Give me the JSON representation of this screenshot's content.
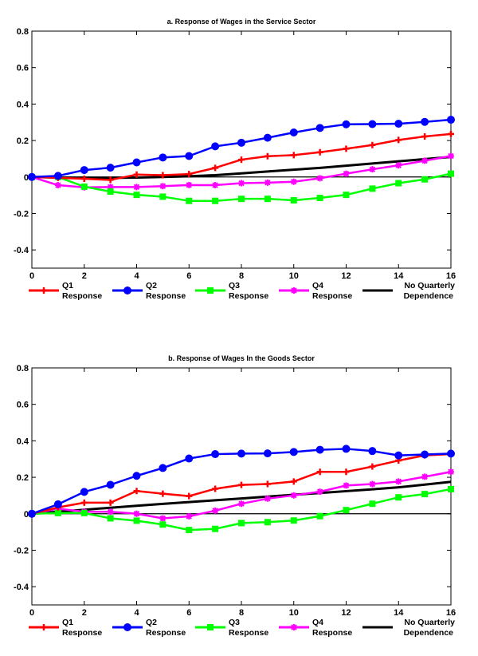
{
  "chart_data": [
    {
      "type": "line",
      "title": "a. Response of Wages in the Service Sector",
      "xlabel": "",
      "ylabel": "",
      "xlim": [
        0,
        16
      ],
      "ylim": [
        -0.5,
        0.8
      ],
      "xticks": [
        0,
        2,
        4,
        6,
        8,
        10,
        12,
        14,
        16
      ],
      "yticks": [
        -0.4,
        -0.2,
        0,
        0.2,
        0.4,
        0.6,
        0.8
      ],
      "ytick_labels": [
        "-0.4",
        "-0.2",
        "0",
        "0.2",
        "0.4",
        "0.6",
        "0.8"
      ],
      "grid": false,
      "legend_position": "bottom",
      "x": [
        0,
        1,
        2,
        3,
        4,
        5,
        6,
        7,
        8,
        9,
        10,
        11,
        12,
        13,
        14,
        15,
        16
      ],
      "series": [
        {
          "name": "Q1 Response",
          "label1": "Q1",
          "label2": "Response",
          "color": "#ff0000",
          "marker": "plus",
          "values": [
            0,
            -0.005,
            -0.01,
            -0.016,
            0.013,
            0.01,
            0.016,
            0.05,
            0.095,
            0.114,
            0.12,
            0.136,
            0.155,
            0.175,
            0.203,
            0.222,
            0.236
          ]
        },
        {
          "name": "Q2 Response",
          "label1": "Q2",
          "label2": "Response",
          "color": "#0000ff",
          "marker": "circle",
          "values": [
            0,
            0.006,
            0.038,
            0.051,
            0.08,
            0.107,
            0.115,
            0.168,
            0.188,
            0.215,
            0.244,
            0.269,
            0.289,
            0.29,
            0.292,
            0.302,
            0.314
          ]
        },
        {
          "name": "Q3 Response",
          "label1": "Q3",
          "label2": "Response",
          "color": "#00ff00",
          "marker": "square",
          "values": [
            0,
            0,
            -0.053,
            -0.08,
            -0.098,
            -0.108,
            -0.131,
            -0.131,
            -0.12,
            -0.12,
            -0.128,
            -0.115,
            -0.098,
            -0.064,
            -0.034,
            -0.013,
            0.018
          ]
        },
        {
          "name": "Q4 Response",
          "label1": "Q4",
          "label2": "Response",
          "color": "#ff00ff",
          "marker": "star",
          "values": [
            0,
            -0.045,
            -0.057,
            -0.055,
            -0.055,
            -0.05,
            -0.044,
            -0.045,
            -0.034,
            -0.031,
            -0.026,
            -0.007,
            0.018,
            0.042,
            0.064,
            0.089,
            0.115
          ]
        },
        {
          "name": "No Quarterly Dependence",
          "label1": "No Quarterly",
          "label2": "Dependence",
          "color": "#000000",
          "marker": "none",
          "values": [
            0,
            -0.003,
            -0.005,
            -0.005,
            -0.003,
            0,
            0.004,
            0.01,
            0.02,
            0.03,
            0.04,
            0.05,
            0.062,
            0.074,
            0.086,
            0.098,
            0.11
          ]
        }
      ]
    },
    {
      "type": "line",
      "title": "b. Response of Wages In the Goods Sector",
      "xlabel": "",
      "ylabel": "",
      "xlim": [
        0,
        16
      ],
      "ylim": [
        -0.5,
        0.8
      ],
      "xticks": [
        0,
        2,
        4,
        6,
        8,
        10,
        12,
        14,
        16
      ],
      "yticks": [
        -0.4,
        -0.2,
        0,
        0.2,
        0.4,
        0.6,
        0.8
      ],
      "ytick_labels": [
        "-0.4",
        "-0.2",
        "0",
        "0.2",
        "0.4",
        "0.6",
        "0.8"
      ],
      "grid": false,
      "legend_position": "bottom",
      "x": [
        0,
        1,
        2,
        3,
        4,
        5,
        6,
        7,
        8,
        9,
        10,
        11,
        12,
        13,
        14,
        15,
        16
      ],
      "series": [
        {
          "name": "Q1 Response",
          "label1": "Q1",
          "label2": "Response",
          "color": "#ff0000",
          "marker": "plus",
          "values": [
            0,
            0.035,
            0.061,
            0.061,
            0.125,
            0.11,
            0.097,
            0.137,
            0.158,
            0.163,
            0.177,
            0.23,
            0.23,
            0.259,
            0.292,
            0.32,
            0.327
          ]
        },
        {
          "name": "Q2 Response",
          "label1": "Q2",
          "label2": "Response",
          "color": "#0000ff",
          "marker": "circle",
          "values": [
            0,
            0.052,
            0.12,
            0.159,
            0.208,
            0.251,
            0.303,
            0.327,
            0.33,
            0.331,
            0.339,
            0.351,
            0.356,
            0.344,
            0.32,
            0.325,
            0.33
          ]
        },
        {
          "name": "Q3 Response",
          "label1": "Q3",
          "label2": "Response",
          "color": "#00ff00",
          "marker": "square",
          "values": [
            0,
            0.004,
            0.004,
            -0.025,
            -0.038,
            -0.059,
            -0.089,
            -0.083,
            -0.051,
            -0.046,
            -0.037,
            -0.013,
            0.02,
            0.055,
            0.09,
            0.108,
            0.135
          ]
        },
        {
          "name": "Q4 Response",
          "label1": "Q4",
          "label2": "Response",
          "color": "#ff00ff",
          "marker": "star",
          "values": [
            0,
            0.028,
            0.011,
            0.011,
            0,
            -0.025,
            -0.014,
            0.017,
            0.055,
            0.083,
            0.101,
            0.121,
            0.155,
            0.163,
            0.177,
            0.203,
            0.23
          ]
        },
        {
          "name": "No Quarterly Dependence",
          "label1": "No Quarterly",
          "label2": "Dependence",
          "color": "#000000",
          "marker": "none",
          "values": [
            0,
            0.011,
            0.022,
            0.033,
            0.044,
            0.054,
            0.064,
            0.074,
            0.084,
            0.094,
            0.104,
            0.114,
            0.124,
            0.134,
            0.145,
            0.16,
            0.175
          ]
        }
      ]
    }
  ]
}
